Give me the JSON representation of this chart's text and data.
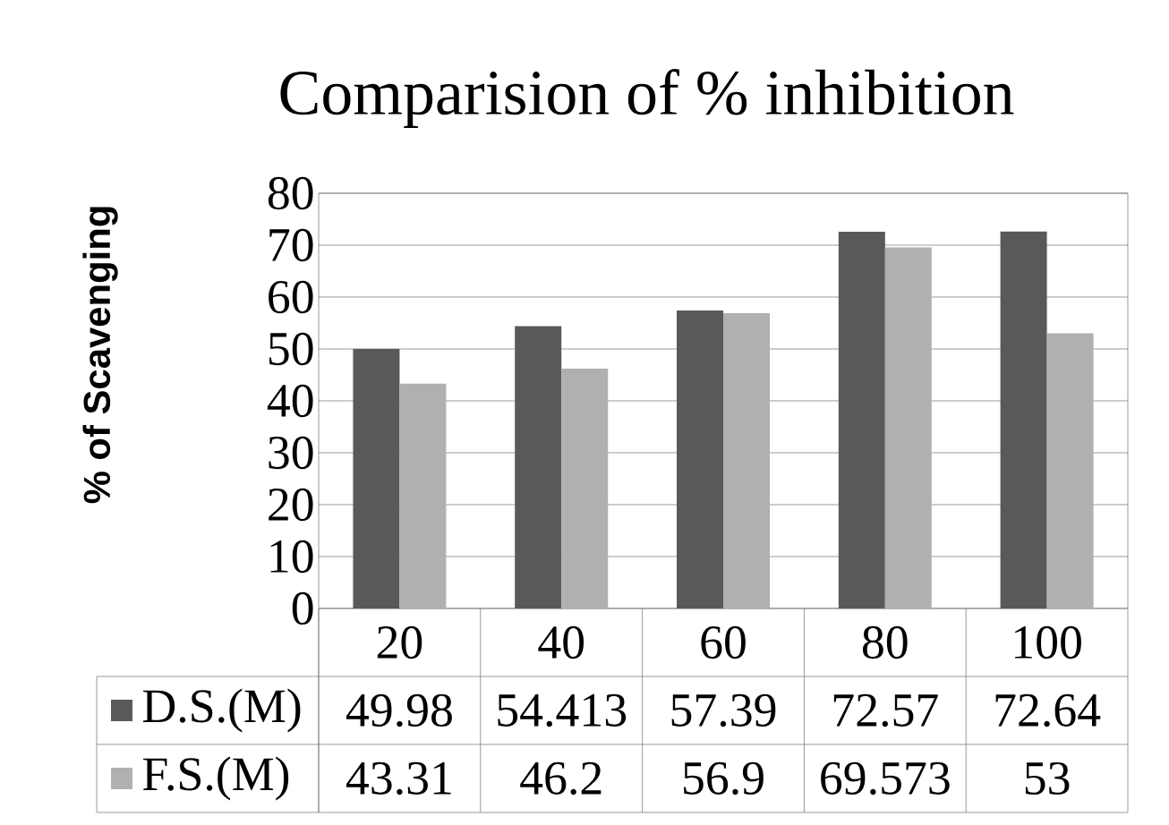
{
  "chart_data": {
    "type": "bar",
    "title": "Comparision of % inhibition",
    "ylabel": "% of Scavenging",
    "categories": [
      "20",
      "40",
      "60",
      "80",
      "100"
    ],
    "series": [
      {
        "name": "D.S.(M)",
        "color": "#595959",
        "values": [
          49.98,
          54.413,
          57.39,
          72.57,
          72.64
        ]
      },
      {
        "name": "F.S.(M)",
        "color": "#b0b0b0",
        "values": [
          43.31,
          46.2,
          56.9,
          69.573,
          53
        ]
      }
    ],
    "ylim": [
      0,
      80
    ],
    "yticks": [
      0,
      10,
      20,
      30,
      40,
      50,
      60,
      70,
      80
    ],
    "grid": "y",
    "data_labels": true,
    "legend": "bottom"
  }
}
